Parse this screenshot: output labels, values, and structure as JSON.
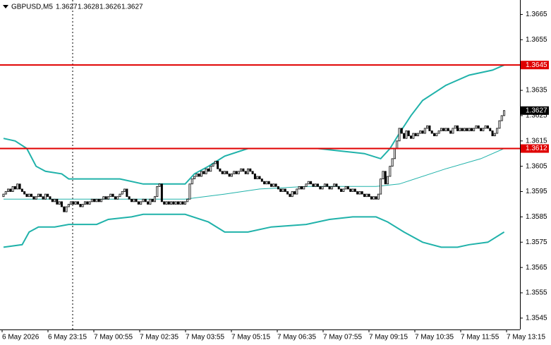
{
  "chart_data": {
    "type": "candlestick",
    "title": "GBPUSD,M5",
    "ohlc": [
      1.3627,
      1.3628,
      1.3626,
      1.3627
    ],
    "up_color": "#ffffff",
    "down_color": "#000000",
    "band_color": "#20b2aa",
    "xlim": [
      -1.5,
      221.8
    ],
    "ylim": [
      1.35405,
      1.36707
    ],
    "yticks": [
      1.3665,
      1.3655,
      1.3645,
      1.3635,
      1.3625,
      1.3615,
      1.3605,
      1.3595,
      1.3585,
      1.3575,
      1.3565,
      1.3555,
      1.3545
    ],
    "x_labels": [
      "6 May 2026",
      "6 May 23:15",
      "7 May 00:55",
      "7 May 02:35",
      "7 May 03:55",
      "7 May 05:15",
      "7 May 06:35",
      "7 May 07:55",
      "7 May 09:15",
      "7 May 10:35",
      "7 May 11:55",
      "7 May 13:15"
    ],
    "levels": [
      {
        "value": 1.3645,
        "color": "#e00000"
      },
      {
        "value": 1.3612,
        "color": "#e00000"
      }
    ],
    "current": 1.3627,
    "open": [
      1.3593,
      1.3594,
      1.3595,
      1.3596,
      1.3595,
      1.3597,
      1.3596,
      1.3598,
      1.3596,
      1.3595,
      1.3594,
      1.3593,
      1.3594,
      1.3593,
      1.3592,
      1.3593,
      1.3594,
      1.3593,
      1.3592,
      1.3594,
      1.3593,
      1.3592,
      1.3591,
      1.3592,
      1.359,
      1.3591,
      1.3589,
      1.3587,
      1.3589,
      1.359,
      1.3591,
      1.359,
      1.3591,
      1.359,
      1.3589,
      1.359,
      1.3591,
      1.359,
      1.3591,
      1.3592,
      1.3591,
      1.3592,
      1.3591,
      1.3592,
      1.3593,
      1.3592,
      1.3593,
      1.3594,
      1.3593,
      1.3592,
      1.3593,
      1.3594,
      1.3595,
      1.3596,
      1.3593,
      1.3592,
      1.3591,
      1.3592,
      1.3591,
      1.359,
      1.3591,
      1.3592,
      1.3591,
      1.359,
      1.3592,
      1.3591,
      1.3593,
      1.3597,
      1.3598,
      1.3591,
      1.359,
      1.3591,
      1.359,
      1.3591,
      1.359,
      1.3591,
      1.359,
      1.3591,
      1.359,
      1.3591,
      1.3592,
      1.3598,
      1.36,
      1.3601,
      1.3602,
      1.3601,
      1.3603,
      1.3602,
      1.3604,
      1.3603,
      1.3605,
      1.3606,
      1.3607,
      1.3604,
      1.3603,
      1.3602,
      1.3603,
      1.3602,
      1.3601,
      1.3602,
      1.3603,
      1.3602,
      1.3603,
      1.3604,
      1.3603,
      1.3602,
      1.3604,
      1.3603,
      1.3602,
      1.36,
      1.3601,
      1.36,
      1.3599,
      1.3598,
      1.3599,
      1.3598,
      1.3597,
      1.3598,
      1.3597,
      1.3596,
      1.3595,
      1.3596,
      1.3595,
      1.3594,
      1.3593,
      1.3595,
      1.3594,
      1.3596,
      1.3597,
      1.3596,
      1.3597,
      1.3598,
      1.3599,
      1.3598,
      1.3597,
      1.3598,
      1.3597,
      1.3596,
      1.3597,
      1.3598,
      1.3597,
      1.3596,
      1.3597,
      1.3598,
      1.3597,
      1.3596,
      1.3595,
      1.3596,
      1.3597,
      1.3596,
      1.3595,
      1.3596,
      1.3595,
      1.3594,
      1.3595,
      1.3594,
      1.3593,
      1.3594,
      1.3593,
      1.3592,
      1.3593,
      1.3592,
      1.3594,
      1.36,
      1.3603,
      1.3598,
      1.3601,
      1.3605,
      1.3608,
      1.3612,
      1.3615,
      1.362,
      1.3618,
      1.3616,
      1.3619,
      1.3617,
      1.3616,
      1.3618,
      1.3617,
      1.3618,
      1.3619,
      1.3618,
      1.362,
      1.3621,
      1.3619,
      1.3618,
      1.3617,
      1.3618,
      1.3619,
      1.362,
      1.3619,
      1.362,
      1.3619,
      1.3618,
      1.362,
      1.3621,
      1.3619,
      1.362,
      1.3619,
      1.362,
      1.3619,
      1.362,
      1.3619,
      1.362,
      1.3621,
      1.362,
      1.3619,
      1.362,
      1.3621,
      1.362,
      1.3619,
      1.3617,
      1.3618,
      1.362,
      1.3623,
      1.3625
    ],
    "close": [
      1.3594,
      1.3595,
      1.3596,
      1.3595,
      1.3597,
      1.3596,
      1.3598,
      1.3596,
      1.3595,
      1.3594,
      1.3593,
      1.3594,
      1.3593,
      1.3592,
      1.3593,
      1.3594,
      1.3593,
      1.3592,
      1.3594,
      1.3593,
      1.3592,
      1.3591,
      1.3592,
      1.359,
      1.3591,
      1.3589,
      1.3587,
      1.3589,
      1.359,
      1.3591,
      1.359,
      1.3591,
      1.359,
      1.3589,
      1.359,
      1.3591,
      1.359,
      1.3591,
      1.3592,
      1.3591,
      1.3592,
      1.3591,
      1.3592,
      1.3593,
      1.3592,
      1.3593,
      1.3594,
      1.3593,
      1.3592,
      1.3593,
      1.3594,
      1.3595,
      1.3596,
      1.3593,
      1.3592,
      1.3591,
      1.3592,
      1.3591,
      1.359,
      1.3591,
      1.3592,
      1.3591,
      1.359,
      1.3592,
      1.3591,
      1.3593,
      1.3597,
      1.3598,
      1.3591,
      1.359,
      1.3591,
      1.359,
      1.3591,
      1.359,
      1.3591,
      1.359,
      1.3591,
      1.359,
      1.3591,
      1.3592,
      1.3598,
      1.36,
      1.3601,
      1.3602,
      1.3601,
      1.3603,
      1.3602,
      1.3604,
      1.3603,
      1.3605,
      1.3606,
      1.3607,
      1.3604,
      1.3603,
      1.3602,
      1.3603,
      1.3602,
      1.3601,
      1.3602,
      1.3603,
      1.3602,
      1.3603,
      1.3604,
      1.3603,
      1.3602,
      1.3604,
      1.3603,
      1.3602,
      1.36,
      1.3601,
      1.36,
      1.3599,
      1.3598,
      1.3599,
      1.3598,
      1.3597,
      1.3598,
      1.3597,
      1.3596,
      1.3595,
      1.3596,
      1.3595,
      1.3594,
      1.3593,
      1.3595,
      1.3594,
      1.3596,
      1.3597,
      1.3596,
      1.3597,
      1.3598,
      1.3599,
      1.3598,
      1.3597,
      1.3598,
      1.3597,
      1.3596,
      1.3597,
      1.3598,
      1.3597,
      1.3596,
      1.3597,
      1.3598,
      1.3597,
      1.3596,
      1.3595,
      1.3596,
      1.3597,
      1.3596,
      1.3595,
      1.3596,
      1.3595,
      1.3594,
      1.3595,
      1.3594,
      1.3593,
      1.3594,
      1.3593,
      1.3592,
      1.3593,
      1.3592,
      1.3594,
      1.36,
      1.3603,
      1.3598,
      1.3601,
      1.3605,
      1.3608,
      1.3612,
      1.3615,
      1.362,
      1.3618,
      1.3616,
      1.3619,
      1.3617,
      1.3616,
      1.3618,
      1.3617,
      1.3618,
      1.3619,
      1.3618,
      1.362,
      1.3621,
      1.3619,
      1.3618,
      1.3617,
      1.3618,
      1.3619,
      1.362,
      1.3619,
      1.362,
      1.3619,
      1.3618,
      1.362,
      1.3621,
      1.3619,
      1.362,
      1.3619,
      1.362,
      1.3619,
      1.362,
      1.3619,
      1.362,
      1.3621,
      1.362,
      1.3619,
      1.362,
      1.3621,
      1.362,
      1.3619,
      1.3617,
      1.3618,
      1.362,
      1.3623,
      1.3625,
      1.3627
    ],
    "bands": [
      {
        "x": [
          0,
          5,
          10,
          14,
          18,
          25,
          28,
          40,
          50,
          60,
          68,
          78,
          82,
          88,
          95,
          105,
          110,
          135,
          145,
          155,
          162,
          166,
          170,
          175,
          180,
          190,
          200,
          210,
          215
        ],
        "values": [
          1.3616,
          1.3615,
          1.3612,
          1.3605,
          1.3603,
          1.3602,
          1.36,
          1.36,
          1.36,
          1.3598,
          1.3598,
          1.3598,
          1.3602,
          1.3605,
          1.3609,
          1.3612,
          1.3612,
          1.3612,
          1.3611,
          1.361,
          1.3608,
          1.3612,
          1.3618,
          1.3625,
          1.3631,
          1.3637,
          1.3641,
          1.3643,
          1.3645
        ]
      },
      {
        "x": [
          0,
          40,
          60,
          78,
          95,
          110,
          130,
          160,
          170,
          190,
          205,
          215
        ],
        "values": [
          1.3592,
          1.3592,
          1.3592,
          1.3592,
          1.3594,
          1.3596,
          1.3597,
          1.3597,
          1.3598,
          1.3604,
          1.3608,
          1.3612
        ]
      },
      {
        "x": [
          0,
          8,
          11,
          15,
          22,
          28,
          40,
          45,
          55,
          60,
          78,
          88,
          95,
          105,
          115,
          130,
          140,
          150,
          160,
          165,
          172,
          180,
          188,
          195,
          200,
          208,
          215
        ],
        "values": [
          1.3573,
          1.3574,
          1.3579,
          1.3581,
          1.3581,
          1.3582,
          1.3582,
          1.3584,
          1.3585,
          1.3586,
          1.3586,
          1.3583,
          1.3579,
          1.3579,
          1.3581,
          1.3582,
          1.3584,
          1.3585,
          1.3585,
          1.3583,
          1.3579,
          1.3575,
          1.3573,
          1.3573,
          1.3574,
          1.3575,
          1.3579
        ]
      }
    ]
  }
}
